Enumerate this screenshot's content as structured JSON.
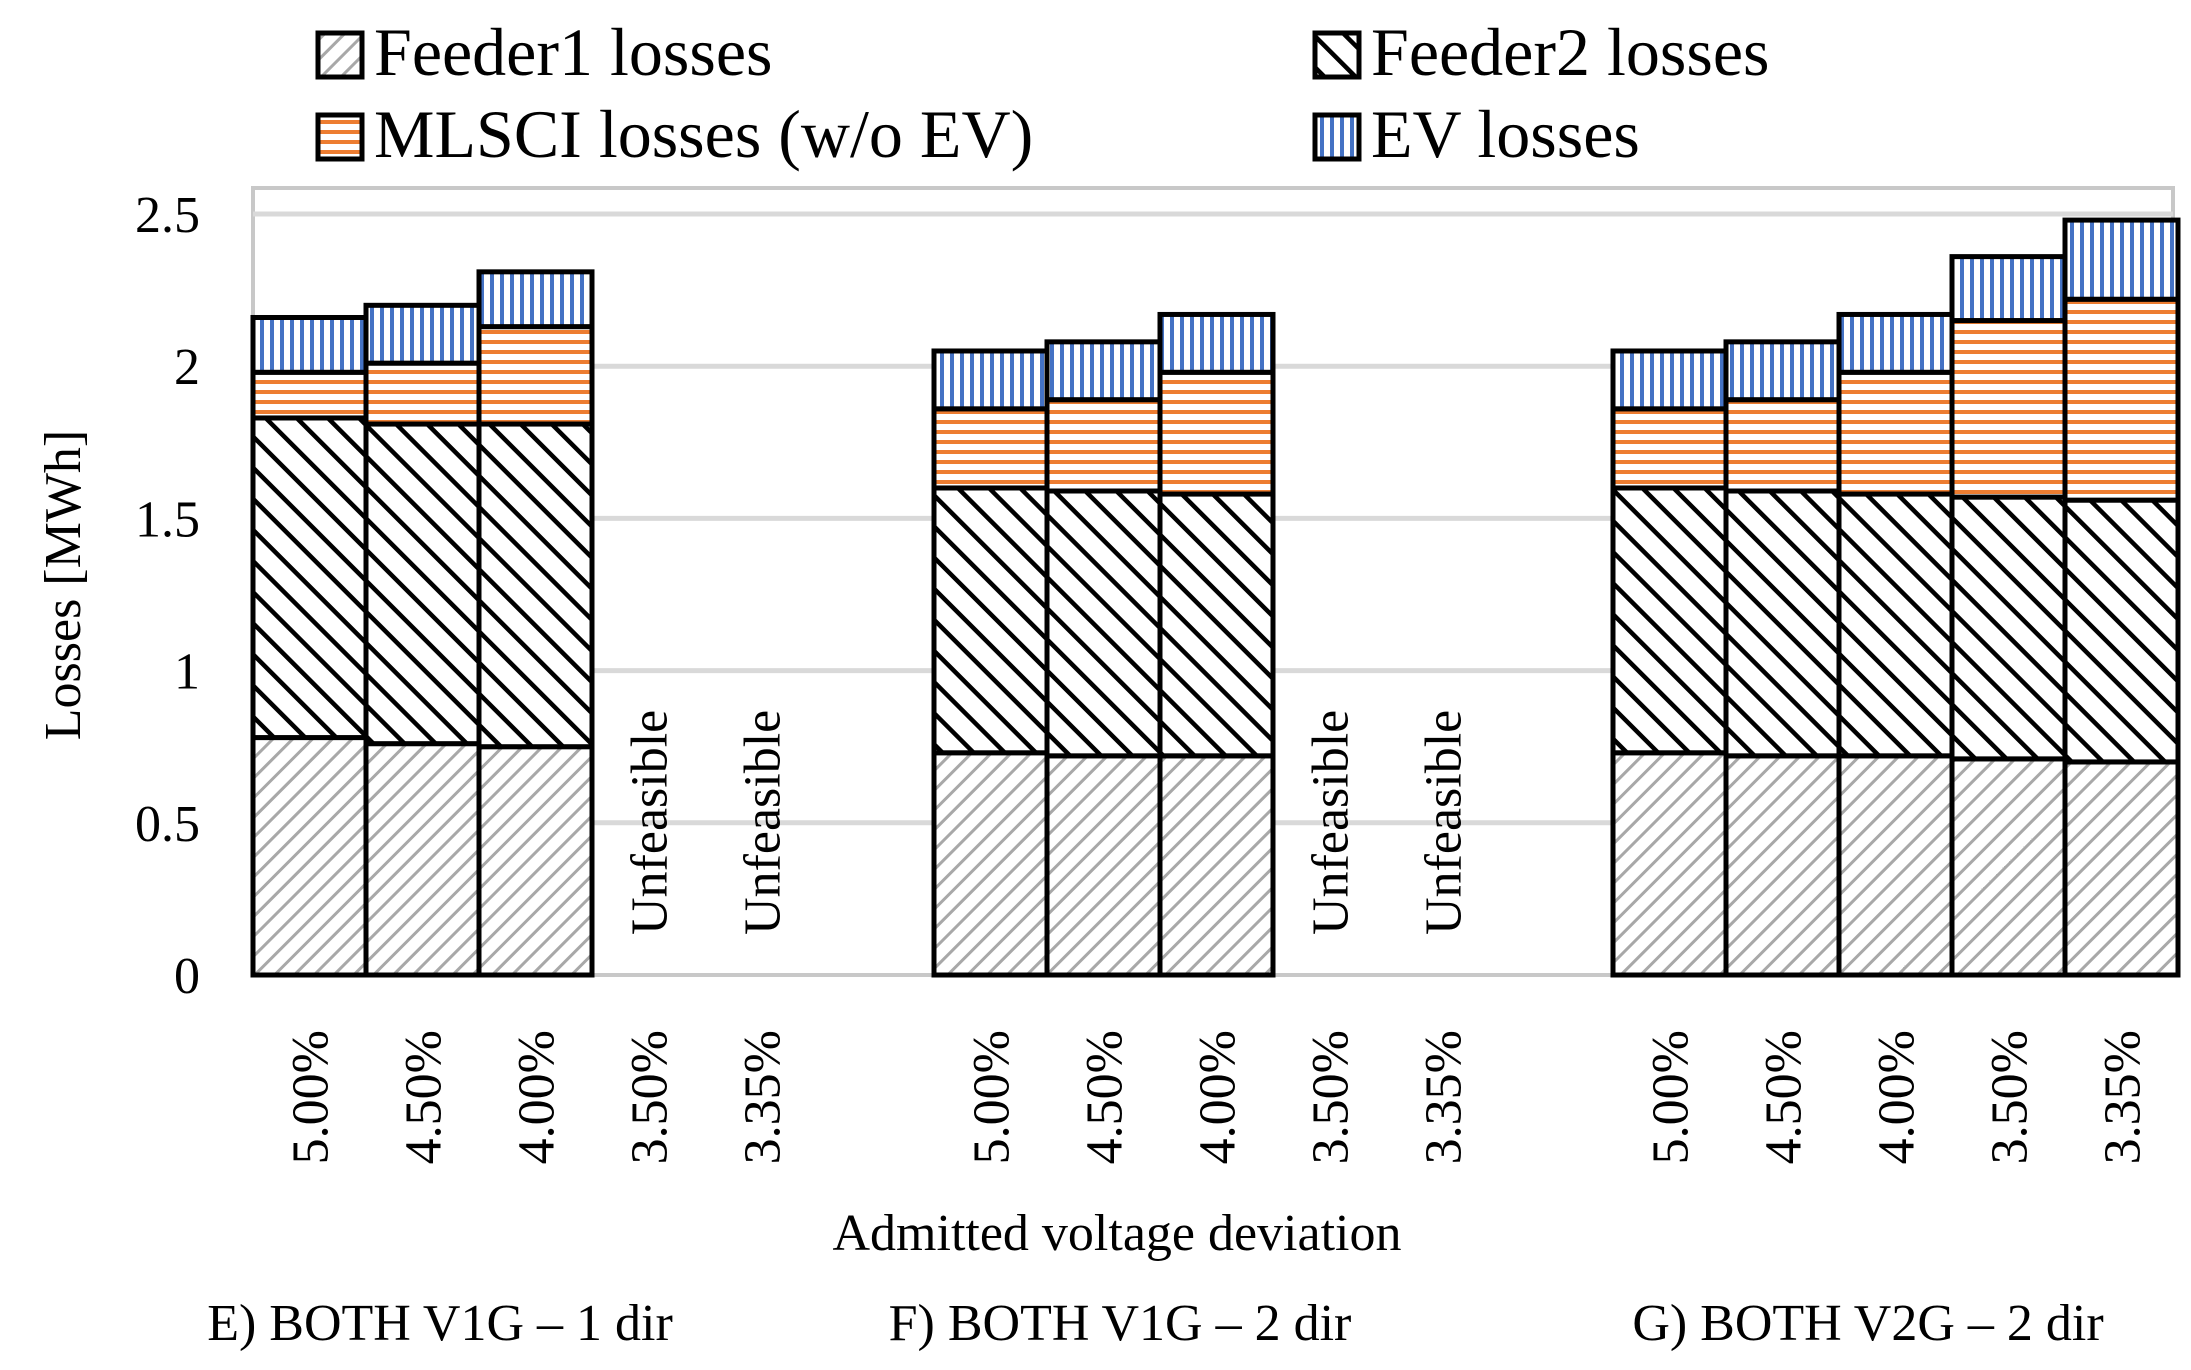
{
  "chart_data": {
    "type": "stacked-bar",
    "title": "",
    "xlabel": "Admitted voltage deviation",
    "ylabel": "Losses [MWh]",
    "ylim": [
      0,
      2.5
    ],
    "yticks": [
      0,
      0.5,
      1,
      1.5,
      2,
      2.5
    ],
    "ytick_labels": [
      "0",
      "0.5",
      "1",
      "1.5",
      "2",
      "2.5"
    ],
    "legend_position": "top",
    "series": [
      {
        "name": "Feeder1 losses",
        "pattern": "light-diagonal",
        "color": "#a8a8a8"
      },
      {
        "name": "Feeder2 losses",
        "pattern": "dark-diagonal",
        "color": "#000000"
      },
      {
        "name": "MLSCI losses (w/o EV)",
        "pattern": "horizontal-lines",
        "color": "#ed7d31"
      },
      {
        "name": "EV losses",
        "pattern": "vertical-lines",
        "color": "#4472c4"
      }
    ],
    "groups": [
      {
        "label": "E) BOTH V1G – 1 dir",
        "bars": [
          {
            "category": "5.00%",
            "feasible": true,
            "values": [
              0.78,
              1.05,
              0.15,
              0.18
            ]
          },
          {
            "category": "4.50%",
            "feasible": true,
            "values": [
              0.76,
              1.05,
              0.2,
              0.19
            ]
          },
          {
            "category": "4.00%",
            "feasible": true,
            "values": [
              0.75,
              1.06,
              0.32,
              0.18
            ]
          },
          {
            "category": "3.50%",
            "feasible": false,
            "label": "Unfeasible"
          },
          {
            "category": "3.35%",
            "feasible": false,
            "label": "Unfeasible"
          }
        ]
      },
      {
        "label": "F) BOTH V1G – 2 dir",
        "bars": [
          {
            "category": "5.00%",
            "feasible": true,
            "values": [
              0.73,
              0.87,
              0.26,
              0.19
            ]
          },
          {
            "category": "4.50%",
            "feasible": true,
            "values": [
              0.72,
              0.87,
              0.3,
              0.19
            ]
          },
          {
            "category": "4.00%",
            "feasible": true,
            "values": [
              0.72,
              0.86,
              0.4,
              0.19
            ]
          },
          {
            "category": "3.50%",
            "feasible": false,
            "label": "Unfeasible"
          },
          {
            "category": "3.35%",
            "feasible": false,
            "label": "Unfeasible"
          }
        ]
      },
      {
        "label": "G) BOTH V2G – 2 dir",
        "bars": [
          {
            "category": "5.00%",
            "feasible": true,
            "values": [
              0.73,
              0.87,
              0.26,
              0.19
            ]
          },
          {
            "category": "4.50%",
            "feasible": true,
            "values": [
              0.72,
              0.87,
              0.3,
              0.19
            ]
          },
          {
            "category": "4.00%",
            "feasible": true,
            "values": [
              0.72,
              0.86,
              0.4,
              0.19
            ]
          },
          {
            "category": "3.50%",
            "feasible": true,
            "values": [
              0.71,
              0.86,
              0.58,
              0.21
            ]
          },
          {
            "category": "3.35%",
            "feasible": true,
            "values": [
              0.7,
              0.86,
              0.66,
              0.26
            ]
          }
        ]
      }
    ]
  }
}
